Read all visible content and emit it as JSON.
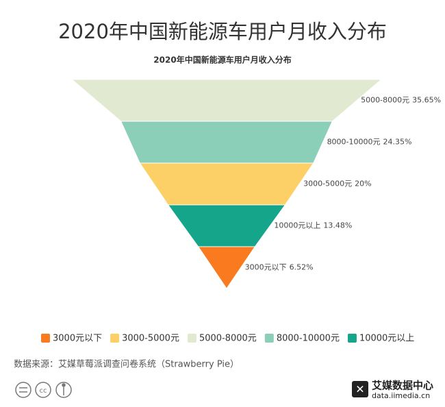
{
  "chart_data": {
    "type": "funnel",
    "title": "2020年中国新能源车用户月收入分布",
    "subtitle": "2020年中国新能源车用户月收入分布",
    "categories": [
      "3000元以下",
      "3000-5000元",
      "5000-8000元",
      "8000-10000元",
      "10000元以上"
    ],
    "values": [
      6.52,
      20,
      35.65,
      24.35,
      13.48
    ],
    "value_labels": [
      "6.52%",
      "20%",
      "35.65%",
      "24.35%",
      "13.48%"
    ],
    "colors": [
      "#f97a1f",
      "#fcd066",
      "#e1ead0",
      "#8ccfb9",
      "#14a58a"
    ],
    "source": "数据来源：艾媒草莓派调查问卷系统（Strawberry Pie）",
    "logo": {
      "name": "艾媒数据中心",
      "url": "data.iimedia.cn"
    }
  }
}
